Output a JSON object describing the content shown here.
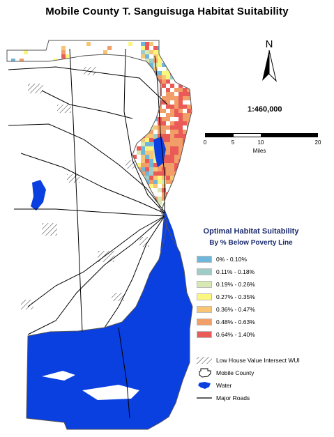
{
  "title": "Mobile County T. Sanguisuga Habitat Suitability",
  "north_label": "N",
  "scale_text": "1:460,000",
  "scalebar": {
    "ticks": [
      "0",
      "5",
      "10",
      "20"
    ],
    "units": "Miles"
  },
  "legend": {
    "title": "Optimal Habitat Suitability",
    "subtitle": "By % Below Poverty Line",
    "classes": [
      {
        "label": "0% - 0.10%",
        "color": "#6fb7da"
      },
      {
        "label": "0.11% - 0.18%",
        "color": "#9fccc6"
      },
      {
        "label": "0.19% - 0.26%",
        "color": "#d7e8b2"
      },
      {
        "label": "0.27% - 0.35%",
        "color": "#fbf77e"
      },
      {
        "label": "0.36% - 0.47%",
        "color": "#f7c573"
      },
      {
        "label": "0.48% - 0.63%",
        "color": "#f29e68"
      },
      {
        "label": "0.64% - 1.40%",
        "color": "#ea5b58"
      }
    ],
    "symbols": [
      {
        "label": "Low House Value Intersect WUI",
        "icon": "hatch-icon"
      },
      {
        "label": "Mobile County",
        "icon": "county-outline-icon"
      },
      {
        "label": "Water",
        "icon": "water-icon"
      },
      {
        "label": "Major Roads",
        "icon": "road-line-icon"
      }
    ]
  },
  "colors": {
    "water": "#0a3fe0",
    "land": "#ffffff",
    "outline": "#555555"
  }
}
